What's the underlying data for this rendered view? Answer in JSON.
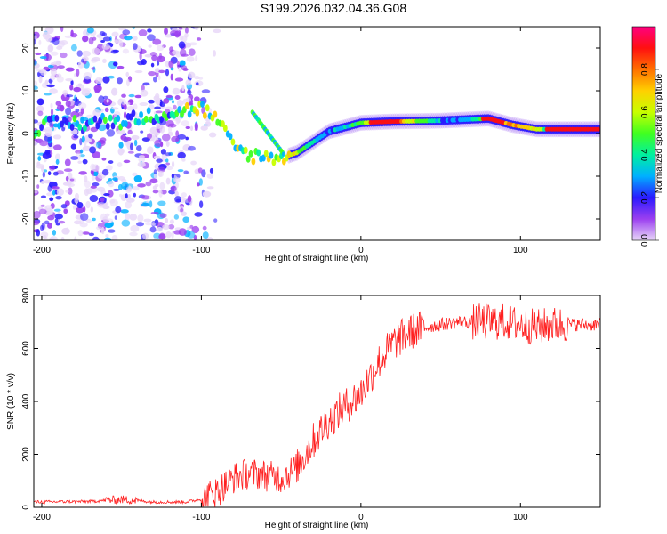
{
  "title": "S199.2026.032.04.36.G08",
  "chart_data": [
    {
      "type": "heatmap",
      "name": "spectrogram",
      "xlabel": "Height of straight line (km)",
      "ylabel": "Frequency (Hz)",
      "xlim": [
        -205,
        150
      ],
      "ylim": [
        -25,
        25
      ],
      "xticks": [
        -200,
        -100,
        0,
        100
      ],
      "yticks": [
        -20,
        -10,
        0,
        10,
        20
      ],
      "colorbar": {
        "label": "Normalized spectral amplitude",
        "range": [
          0,
          1
        ],
        "ticks": [
          "0.0",
          "0.2",
          "0.4",
          "0.6",
          "0.8"
        ],
        "colors": [
          "#e8d8f8",
          "#9b3ff0",
          "#2a1aff",
          "#00b0ff",
          "#00f0a0",
          "#40ff20",
          "#c8ff00",
          "#ffd000",
          "#ff7000",
          "#ff1010",
          "#ff0080"
        ]
      },
      "ridge": [
        {
          "x": -200,
          "f": 2.0
        },
        {
          "x": -150,
          "f": 3.0
        },
        {
          "x": -100,
          "f": 6.0
        },
        {
          "x": -90,
          "f": 3.0
        },
        {
          "x": -80,
          "f": -3.0
        },
        {
          "x": -70,
          "f": -5.0
        },
        {
          "x": -60,
          "f": -5.5
        },
        {
          "x": -48,
          "f": -5.5
        },
        {
          "x": -40,
          "f": -4.5
        },
        {
          "x": -30,
          "f": -2.0
        },
        {
          "x": -20,
          "f": 0.5
        },
        {
          "x": -10,
          "f": 1.5
        },
        {
          "x": 0,
          "f": 2.5
        },
        {
          "x": 20,
          "f": 2.8
        },
        {
          "x": 50,
          "f": 3.0
        },
        {
          "x": 80,
          "f": 3.5
        },
        {
          "x": 95,
          "f": 2.0
        },
        {
          "x": 110,
          "f": 1.0
        },
        {
          "x": 130,
          "f": 1.0
        },
        {
          "x": 150,
          "f": 1.0
        }
      ],
      "branch": [
        {
          "x": -68,
          "f": 5.0
        },
        {
          "x": -58,
          "f": 0.0
        },
        {
          "x": -48,
          "f": -5.0
        }
      ]
    },
    {
      "type": "line",
      "name": "snr",
      "xlabel": "Height of straight line (km)",
      "ylabel": "SNR (10 * v/v)",
      "xlim": [
        -205,
        150
      ],
      "ylim": [
        0,
        800
      ],
      "xticks": [
        -200,
        -100,
        0,
        100
      ],
      "yticks": [
        0,
        200,
        400,
        600,
        800
      ],
      "color": "#ff2020",
      "series": [
        {
          "name": "SNR",
          "x": [
            -205,
            -170,
            -150,
            -130,
            -110,
            -100,
            -90,
            -80,
            -70,
            -60,
            -50,
            -40,
            -30,
            -20,
            -10,
            0,
            10,
            20,
            30,
            40,
            50,
            60,
            70,
            80,
            90,
            100,
            110,
            120,
            130,
            140,
            150
          ],
          "values": [
            20,
            22,
            30,
            20,
            20,
            30,
            60,
            110,
            130,
            120,
            110,
            150,
            250,
            330,
            380,
            430,
            540,
            620,
            660,
            680,
            690,
            700,
            700,
            700,
            700,
            690,
            680,
            690,
            690,
            690,
            690
          ]
        }
      ]
    }
  ]
}
